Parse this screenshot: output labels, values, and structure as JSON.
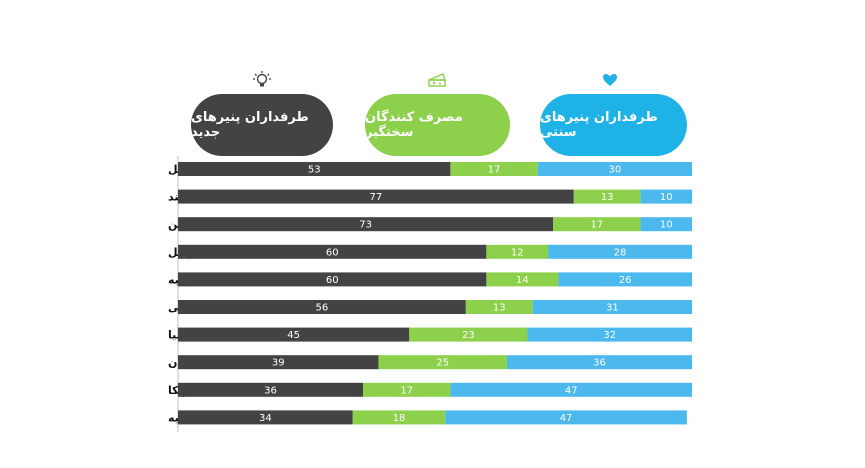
{
  "legend": [
    {
      "label": "طرفداران پنیرهای جدید",
      "icon": "lightbulb-icon",
      "color": "#434343"
    },
    {
      "label": "مصرف کنندگان سختگیر",
      "icon": "cheese-icon",
      "color": "#8dd04b"
    },
    {
      "label": "طرفداران پنیرهای سنتی",
      "icon": "heart-icon",
      "color": "#1fb2e6"
    }
  ],
  "chart_data": {
    "type": "bar",
    "orientation": "horizontal",
    "stacked": true,
    "percent_stacked": true,
    "categories": [
      "کل",
      "هند",
      "چین",
      "برزیل",
      "ترکیه",
      "آفریقا جنوبی",
      "ایتالیا",
      "آلمان",
      "آمریکا",
      "روسیه"
    ],
    "series": [
      {
        "name": "طرفداران پنیرهای جدید",
        "color": "#434343",
        "values": [
          53,
          77,
          73,
          60,
          60,
          56,
          45,
          39,
          36,
          34
        ]
      },
      {
        "name": "مصرف کنندگان سختگیر",
        "color": "#8dd04b",
        "values": [
          17,
          13,
          17,
          12,
          14,
          13,
          23,
          25,
          17,
          18
        ]
      },
      {
        "name": "طرفداران پنیرهای سنتی",
        "color": "#4bb8ee",
        "values": [
          30,
          10,
          10,
          28,
          26,
          31,
          32,
          36,
          47,
          47
        ]
      }
    ],
    "xlim": [
      0,
      100
    ],
    "grid": false,
    "legend_position": "top"
  }
}
